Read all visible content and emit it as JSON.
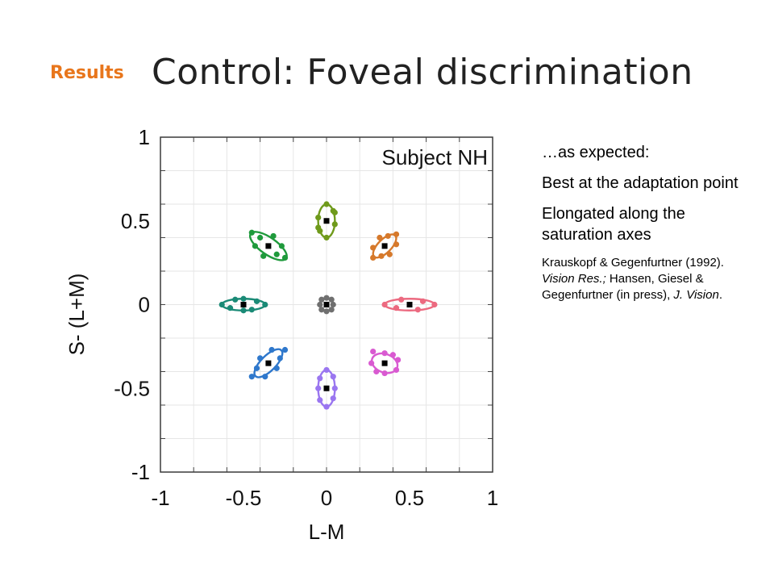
{
  "header": {
    "section_tag": "Results",
    "title": "Control: Foveal discrimination"
  },
  "notes": {
    "line1": "…as expected:",
    "line2": "Best at the adaptation point",
    "line3": "Elongated along the saturation axes",
    "citation": {
      "part1": "Krauskopf & Gegenfurtner (1992). ",
      "journal1": "Vision Res.;",
      "part2": " Hansen, Giesel & Gegenfurtner (in press), ",
      "journal2": "J. Vision",
      "part3": "."
    }
  },
  "chart_data": {
    "type": "scatter",
    "title": "Subject NH",
    "xlabel": "L-M",
    "ylabel": "S- (L+M)",
    "xlim": [
      -1,
      1
    ],
    "ylim": [
      -1,
      1
    ],
    "xticks": [
      -1,
      -0.5,
      0,
      0.5,
      1
    ],
    "xtick_labels": [
      "-1",
      "-0.5",
      "0",
      "0.5",
      "1"
    ],
    "yticks": [
      1,
      0.5,
      0,
      -0.5,
      -1
    ],
    "ytick_labels": [
      "1",
      "0.5",
      "0",
      "-0.5",
      "-1"
    ],
    "grid": true,
    "legend": "none",
    "adaptation_points": [
      {
        "x": 0,
        "y": 0
      },
      {
        "x": 0,
        "y": 0.5
      },
      {
        "x": 0.35,
        "y": 0.35
      },
      {
        "x": 0.5,
        "y": 0
      },
      {
        "x": 0.35,
        "y": -0.35
      },
      {
        "x": 0,
        "y": -0.5
      },
      {
        "x": -0.35,
        "y": -0.35
      },
      {
        "x": -0.5,
        "y": 0
      },
      {
        "x": -0.35,
        "y": 0.35
      }
    ],
    "ellipses": [
      {
        "cx": 0,
        "cy": 0,
        "a": 0.04,
        "b": 0.04,
        "angle_deg": 0,
        "color": "#6f6f6f"
      },
      {
        "cx": 0,
        "cy": 0.5,
        "a": 0.1,
        "b": 0.05,
        "angle_deg": 90,
        "color": "#6f9a1b"
      },
      {
        "cx": 0.35,
        "cy": 0.35,
        "a": 0.09,
        "b": 0.04,
        "angle_deg": 45,
        "color": "#d6792b"
      },
      {
        "cx": 0.5,
        "cy": 0,
        "a": 0.15,
        "b": 0.035,
        "angle_deg": 0,
        "color": "#ec6a80"
      },
      {
        "cx": 0.35,
        "cy": -0.35,
        "a": 0.08,
        "b": 0.055,
        "angle_deg": -20,
        "color": "#d95ad1"
      },
      {
        "cx": 0,
        "cy": -0.5,
        "a": 0.11,
        "b": 0.05,
        "angle_deg": 90,
        "color": "#9a76f0"
      },
      {
        "cx": -0.35,
        "cy": -0.35,
        "a": 0.11,
        "b": 0.045,
        "angle_deg": 45,
        "color": "#2f78cc"
      },
      {
        "cx": -0.5,
        "cy": 0,
        "a": 0.13,
        "b": 0.035,
        "angle_deg": 0,
        "color": "#1a8a76"
      },
      {
        "cx": -0.35,
        "cy": 0.35,
        "a": 0.13,
        "b": 0.05,
        "angle_deg": -35,
        "color": "#1f9a3c"
      }
    ],
    "data_points": [
      {
        "x": -0.03,
        "y": 0.03,
        "set": 0
      },
      {
        "x": 0.03,
        "y": 0.03,
        "set": 0
      },
      {
        "x": -0.03,
        "y": -0.03,
        "set": 0
      },
      {
        "x": 0.03,
        "y": -0.03,
        "set": 0
      },
      {
        "x": 0,
        "y": 0.04,
        "set": 0
      },
      {
        "x": 0,
        "y": -0.04,
        "set": 0
      },
      {
        "x": -0.04,
        "y": 0,
        "set": 0
      },
      {
        "x": 0.04,
        "y": 0,
        "set": 0
      },
      {
        "x": 0,
        "y": 0.6,
        "set": 1
      },
      {
        "x": 0,
        "y": 0.4,
        "set": 1
      },
      {
        "x": -0.05,
        "y": 0.52,
        "set": 1
      },
      {
        "x": 0.05,
        "y": 0.48,
        "set": 1
      },
      {
        "x": -0.04,
        "y": 0.44,
        "set": 1
      },
      {
        "x": 0.04,
        "y": 0.56,
        "set": 1
      },
      {
        "x": 0.05,
        "y": 0.55,
        "set": 1
      },
      {
        "x": -0.05,
        "y": 0.46,
        "set": 1
      },
      {
        "x": 0.42,
        "y": 0.42,
        "set": 2
      },
      {
        "x": 0.28,
        "y": 0.28,
        "set": 2
      },
      {
        "x": 0.38,
        "y": 0.3,
        "set": 2
      },
      {
        "x": 0.32,
        "y": 0.4,
        "set": 2
      },
      {
        "x": 0.42,
        "y": 0.36,
        "set": 2
      },
      {
        "x": 0.28,
        "y": 0.34,
        "set": 2
      },
      {
        "x": 0.37,
        "y": 0.41,
        "set": 2
      },
      {
        "x": 0.33,
        "y": 0.29,
        "set": 2
      },
      {
        "x": 0.65,
        "y": 0,
        "set": 3
      },
      {
        "x": 0.35,
        "y": 0,
        "set": 3
      },
      {
        "x": 0.45,
        "y": 0.03,
        "set": 3
      },
      {
        "x": 0.55,
        "y": -0.03,
        "set": 3
      },
      {
        "x": 0.58,
        "y": 0.02,
        "set": 3
      },
      {
        "x": 0.42,
        "y": -0.02,
        "set": 3
      },
      {
        "x": 0.28,
        "y": -0.28,
        "set": 4
      },
      {
        "x": 0.42,
        "y": -0.39,
        "set": 4
      },
      {
        "x": 0.3,
        "y": -0.4,
        "set": 4
      },
      {
        "x": 0.4,
        "y": -0.3,
        "set": 4
      },
      {
        "x": 0.27,
        "y": -0.35,
        "set": 4
      },
      {
        "x": 0.43,
        "y": -0.33,
        "set": 4
      },
      {
        "x": 0.35,
        "y": -0.29,
        "set": 4
      },
      {
        "x": 0.35,
        "y": -0.41,
        "set": 4
      },
      {
        "x": 0,
        "y": -0.39,
        "set": 5
      },
      {
        "x": 0,
        "y": -0.61,
        "set": 5
      },
      {
        "x": -0.05,
        "y": -0.5,
        "set": 5
      },
      {
        "x": 0.05,
        "y": -0.5,
        "set": 5
      },
      {
        "x": -0.04,
        "y": -0.44,
        "set": 5
      },
      {
        "x": 0.04,
        "y": -0.56,
        "set": 5
      },
      {
        "x": 0.04,
        "y": -0.43,
        "set": 5
      },
      {
        "x": -0.04,
        "y": -0.57,
        "set": 5
      },
      {
        "x": -0.25,
        "y": -0.27,
        "set": 6
      },
      {
        "x": -0.45,
        "y": -0.43,
        "set": 6
      },
      {
        "x": -0.4,
        "y": -0.32,
        "set": 6
      },
      {
        "x": -0.3,
        "y": -0.38,
        "set": 6
      },
      {
        "x": -0.42,
        "y": -0.38,
        "set": 6
      },
      {
        "x": -0.28,
        "y": -0.32,
        "set": 6
      },
      {
        "x": -0.33,
        "y": -0.27,
        "set": 6
      },
      {
        "x": -0.37,
        "y": -0.43,
        "set": 6
      },
      {
        "x": -0.63,
        "y": 0,
        "set": 7
      },
      {
        "x": -0.37,
        "y": 0,
        "set": 7
      },
      {
        "x": -0.55,
        "y": 0.03,
        "set": 7
      },
      {
        "x": -0.45,
        "y": -0.03,
        "set": 7
      },
      {
        "x": -0.58,
        "y": -0.02,
        "set": 7
      },
      {
        "x": -0.42,
        "y": 0.02,
        "set": 7
      },
      {
        "x": -0.5,
        "y": 0.035,
        "set": 7
      },
      {
        "x": -0.5,
        "y": -0.035,
        "set": 7
      },
      {
        "x": -0.45,
        "y": 0.43,
        "set": 8
      },
      {
        "x": -0.25,
        "y": 0.28,
        "set": 8
      },
      {
        "x": -0.38,
        "y": 0.29,
        "set": 8
      },
      {
        "x": -0.32,
        "y": 0.41,
        "set": 8
      },
      {
        "x": -0.43,
        "y": 0.35,
        "set": 8
      },
      {
        "x": -0.27,
        "y": 0.35,
        "set": 8
      },
      {
        "x": -0.3,
        "y": 0.3,
        "set": 8
      },
      {
        "x": -0.4,
        "y": 0.4,
        "set": 8
      }
    ]
  }
}
